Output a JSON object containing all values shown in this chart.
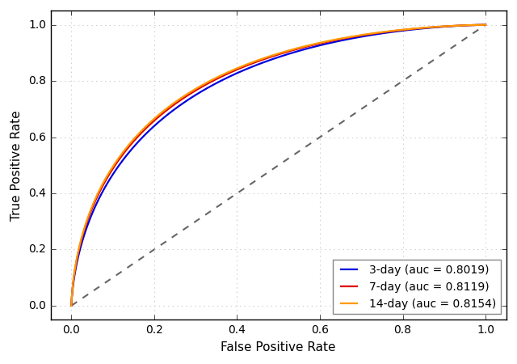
{
  "title": "",
  "xlabel": "False Positive Rate",
  "ylabel": "True Positive Rate",
  "xlim": [
    -0.05,
    1.05
  ],
  "ylim": [
    -0.05,
    1.05
  ],
  "curves": [
    {
      "label": "3-day (auc = 0.8019)",
      "color": "#0000dd",
      "auc": 0.8019,
      "linewidth": 1.6
    },
    {
      "label": "7-day (auc = 0.8119)",
      "color": "#dd0000",
      "auc": 0.8119,
      "linewidth": 1.6
    },
    {
      "label": "14-day (auc = 0.8154)",
      "color": "#ff9900",
      "auc": 0.8154,
      "linewidth": 1.6
    }
  ],
  "diagonal_color": "#666666",
  "diagonal_linestyle": "--",
  "diagonal_linewidth": 1.5,
  "grid_color": "#cccccc",
  "grid_linestyle": ":",
  "legend_loc": "lower right",
  "legend_fontsize": 10,
  "tick_fontsize": 10,
  "label_fontsize": 11,
  "bg_color": "#ffffff",
  "fig_color": "#f2f2f2",
  "xticks": [
    0.0,
    0.2,
    0.4,
    0.6,
    0.8,
    1.0
  ],
  "yticks": [
    0.0,
    0.2,
    0.4,
    0.6,
    0.8,
    1.0
  ]
}
